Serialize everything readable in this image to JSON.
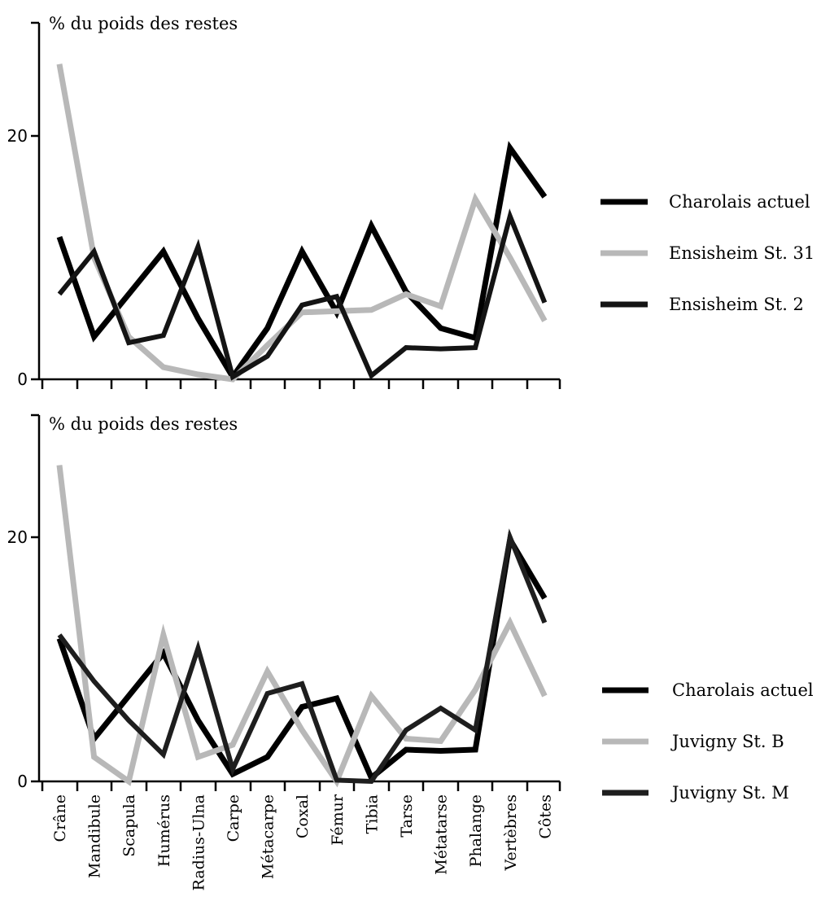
{
  "chart_data": [
    {
      "type": "line",
      "ylabel": "% du poids des restes",
      "ylim": [
        0,
        26
      ],
      "yticks": [
        "0",
        "20"
      ],
      "categories": [
        "Crâne",
        "Mandibule",
        "Scapula",
        "Humérus",
        "Radius-Ulna",
        "Carpe",
        "Métacarpe",
        "Coxal",
        "Fémur",
        "Tibia",
        "Tarse",
        "Métatarse",
        "Phalange",
        "Vertèbres",
        "Côtes"
      ],
      "legend_position": "right",
      "series": [
        {
          "name": "Charolais actuel",
          "color": "#000000",
          "style": "solid-black",
          "values": [
            11.7,
            3.5,
            7.0,
            10.5,
            5.0,
            0.2,
            4.2,
            10.5,
            5.5,
            12.6,
            7.2,
            4.2,
            3.4,
            19.0,
            15.0
          ]
        },
        {
          "name": "Ensisheim St. 31",
          "color": "#b8b8b8",
          "style": "gray",
          "values": [
            25.9,
            10.0,
            3.5,
            1.0,
            0.4,
            0.0,
            2.8,
            5.5,
            5.6,
            5.7,
            7.0,
            6.0,
            14.8,
            10.0,
            4.8
          ]
        },
        {
          "name": "Ensisheim St. 2",
          "color": "#141414",
          "style": "dark",
          "values": [
            7.0,
            10.5,
            3.0,
            3.6,
            10.9,
            0.2,
            1.9,
            6.1,
            6.8,
            0.3,
            2.6,
            2.5,
            2.6,
            13.4,
            6.3
          ]
        }
      ]
    },
    {
      "type": "line",
      "ylabel": "% du poids des restes",
      "ylim": [
        0,
        26
      ],
      "yticks": [
        "0",
        "20"
      ],
      "categories": [
        "Crâne",
        "Mandibule",
        "Scapula",
        "Humérus",
        "Radius-Ulna",
        "Carpe",
        "Métacarpe",
        "Coxal",
        "Fémur",
        "Tibia",
        "Tarse",
        "Métatarse",
        "Phalange",
        "Vertèbres",
        "Côtes"
      ],
      "legend_position": "right",
      "series": [
        {
          "name": "Charolais actuel",
          "color": "#000000",
          "style": "solid-black",
          "values": [
            11.7,
            3.5,
            7.0,
            10.5,
            5.0,
            0.6,
            2.0,
            6.1,
            6.8,
            0.3,
            2.6,
            2.5,
            2.6,
            19.8,
            15.0
          ]
        },
        {
          "name": "Juvigny St. B",
          "color": "#b8b8b8",
          "style": "gray",
          "values": [
            25.9,
            2.0,
            0.0,
            12.0,
            2.0,
            3.0,
            9.0,
            4.2,
            0.0,
            7.0,
            3.5,
            3.3,
            7.5,
            13.0,
            7.0
          ]
        },
        {
          "name": "Juvigny St. M",
          "color": "#1e1e1e",
          "style": "dark",
          "values": [
            12.0,
            8.2,
            5.0,
            2.2,
            10.9,
            1.0,
            7.2,
            8.0,
            0.1,
            0.0,
            4.2,
            6.0,
            4.2,
            20.0,
            13.0
          ]
        }
      ]
    }
  ]
}
